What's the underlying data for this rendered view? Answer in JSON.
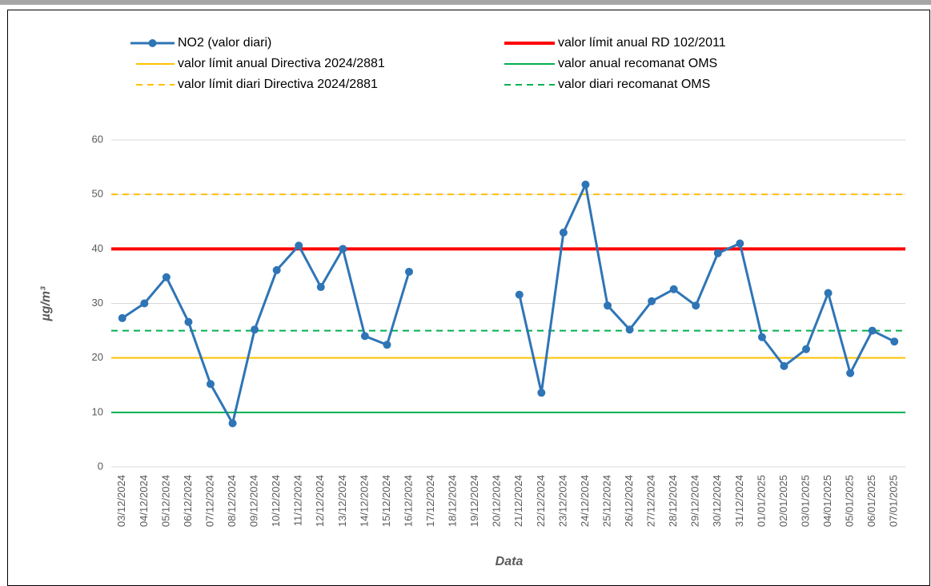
{
  "chart_data": {
    "type": "line",
    "x_label": "Data",
    "y_label": "µg/m³",
    "categories": [
      "03/12/2024",
      "04/12/2024",
      "05/12/2024",
      "06/12/2024",
      "07/12/2024",
      "08/12/2024",
      "09/12/2024",
      "10/12/2024",
      "11/12/2024",
      "12/12/2024",
      "13/12/2024",
      "14/12/2024",
      "15/12/2024",
      "16/12/2024",
      "17/12/2024",
      "18/12/2024",
      "19/12/2024",
      "20/12/2024",
      "21/12/2024",
      "22/12/2024",
      "23/12/2024",
      "24/12/2024",
      "25/12/2024",
      "26/12/2024",
      "27/12/2024",
      "28/12/2024",
      "29/12/2024",
      "30/12/2024",
      "31/12/2024",
      "01/01/2025",
      "02/01/2025",
      "03/01/2025",
      "04/01/2025",
      "05/01/2025",
      "06/01/2025",
      "07/01/2025"
    ],
    "series": [
      {
        "name": "NO2 (valor diari)",
        "color": "#2e75b6",
        "values": [
          27.3,
          30,
          34.8,
          26.6,
          15.2,
          8.0,
          25.2,
          36.1,
          40.6,
          33,
          40,
          24,
          22.4,
          35.8,
          null,
          null,
          null,
          null,
          31.6,
          13.6,
          43,
          51.8,
          29.6,
          25.2,
          30.4,
          32.6,
          29.6,
          39.2,
          41,
          23.8,
          18.5,
          21.6,
          31.9,
          17.2,
          25,
          23
        ]
      }
    ],
    "reference_lines": [
      {
        "name": "valor límit anual RD 102/2011",
        "color": "#ff0000",
        "value": 40,
        "dashed": false,
        "width": 4
      },
      {
        "name": "valor límit anual Directiva 2024/2881",
        "color": "#ffc000",
        "value": 20,
        "dashed": false,
        "width": 2
      },
      {
        "name": "valor anual recomanat OMS",
        "color": "#00b050",
        "value": 10,
        "dashed": false,
        "width": 2
      },
      {
        "name": "valor límit diari Directiva 2024/2881",
        "color": "#ffc000",
        "value": 50,
        "dashed": true,
        "width": 2
      },
      {
        "name": "valor diari recomanat OMS",
        "color": "#00b050",
        "value": 25,
        "dashed": true,
        "width": 2
      }
    ],
    "ylim": [
      0,
      60
    ],
    "yticks": [
      0,
      10,
      20,
      30,
      40,
      50,
      60
    ],
    "grid": true
  }
}
